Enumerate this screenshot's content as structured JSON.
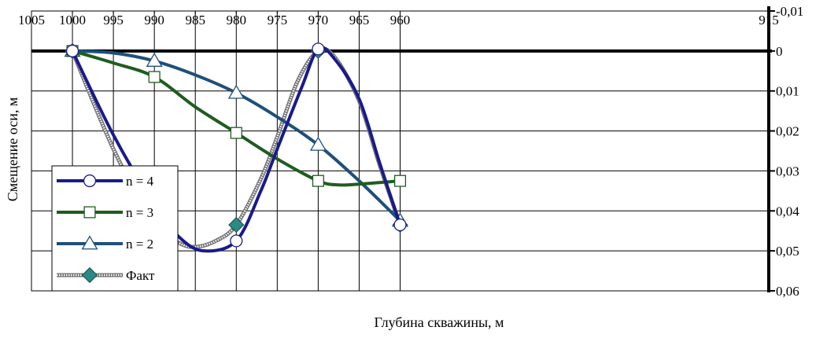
{
  "chart_data": {
    "type": "line",
    "title": "",
    "xlabel": "Глубина скважины, м",
    "ylabel": "Смещение оси, м",
    "x_reversed": true,
    "xlim": [
      1005,
      915
    ],
    "x_ticks": [
      1005,
      1000,
      995,
      990,
      985,
      980,
      975,
      970,
      965,
      960,
      915
    ],
    "x_tick_labels": [
      "1005",
      "1000",
      "995",
      "990",
      "985",
      "980",
      "975",
      "970",
      "965",
      "960",
      "915"
    ],
    "y_reversed": true,
    "ylim": [
      -0.01,
      0.06
    ],
    "y_ticks": [
      -0.01,
      0,
      0.01,
      0.02,
      0.03,
      0.04,
      0.05,
      0.06
    ],
    "y_tick_labels": [
      "-0,01",
      "0",
      "0,01",
      "0,02",
      "0,03",
      "0,04",
      "0,05",
      "0,06"
    ],
    "y_axis_position": "right",
    "grid": true,
    "legend_position": "bottom-left",
    "series": [
      {
        "name": "n = 4",
        "x": [
          1000,
          990,
          980,
          970,
          960
        ],
        "values": [
          0,
          0.0385,
          0.0475,
          -0.0005,
          0.0435
        ],
        "curve": [
          [
            1000,
            0
          ],
          [
            995,
            0.021
          ],
          [
            990,
            0.0385
          ],
          [
            987,
            0.0465
          ],
          [
            984,
            0.05
          ],
          [
            980,
            0.0475
          ],
          [
            977,
            0.035
          ],
          [
            975,
            0.0245
          ],
          [
            972,
            0.009
          ],
          [
            970,
            -0.0005
          ],
          [
            968,
            0.002
          ],
          [
            965,
            0.012
          ],
          [
            962.5,
            0.028
          ],
          [
            960,
            0.0435
          ]
        ],
        "color": "#1a1a8c",
        "marker": "circle",
        "marker_fill": "#ffffff"
      },
      {
        "name": "n = 3",
        "x": [
          1000,
          990,
          980,
          970,
          960
        ],
        "values": [
          0,
          0.0065,
          0.0205,
          0.0325,
          0.0325
        ],
        "curve": [
          [
            1000,
            0
          ],
          [
            995,
            0.003
          ],
          [
            990,
            0.0065
          ],
          [
            985,
            0.014
          ],
          [
            980,
            0.0205
          ],
          [
            975,
            0.027
          ],
          [
            970,
            0.0325
          ],
          [
            967.5,
            0.0335
          ],
          [
            965,
            0.0333
          ],
          [
            960,
            0.0325
          ]
        ],
        "color": "#1f5c1f",
        "marker": "square",
        "marker_fill": "#ffffff"
      },
      {
        "name": "n = 2",
        "x": [
          1000,
          990,
          980,
          970,
          960
        ],
        "values": [
          0,
          0.0025,
          0.0105,
          0.0235,
          0.0425
        ],
        "curve": [
          [
            1000,
            0
          ],
          [
            995,
            0.0005
          ],
          [
            990,
            0.0025
          ],
          [
            985,
            0.006
          ],
          [
            980,
            0.0105
          ],
          [
            975,
            0.0165
          ],
          [
            970,
            0.0235
          ],
          [
            965,
            0.0325
          ],
          [
            960,
            0.0425
          ]
        ],
        "color": "#1f4f7a",
        "marker": "triangle",
        "marker_fill": "#ffffff"
      },
      {
        "name": "Факт",
        "x": [
          1000,
          990,
          980,
          970,
          960
        ],
        "values": [
          0,
          0.0435,
          0.0435,
          0,
          0.0435
        ],
        "curve": [
          [
            1000,
            0
          ],
          [
            995,
            0.0245
          ],
          [
            990,
            0.0435
          ],
          [
            987,
            0.048
          ],
          [
            985,
            0.049
          ],
          [
            982.5,
            0.0475
          ],
          [
            980,
            0.0435
          ],
          [
            977,
            0.032
          ],
          [
            975,
            0.0215
          ],
          [
            972.5,
            0.0075
          ],
          [
            970,
            0
          ],
          [
            968,
            0.0015
          ],
          [
            965,
            0.0125
          ],
          [
            962.5,
            0.0285
          ],
          [
            960,
            0.0435
          ]
        ],
        "color": "#9a9a9a",
        "marker": "diamond",
        "marker_fill": "#2a8a85",
        "line_style": "hatched"
      }
    ]
  }
}
